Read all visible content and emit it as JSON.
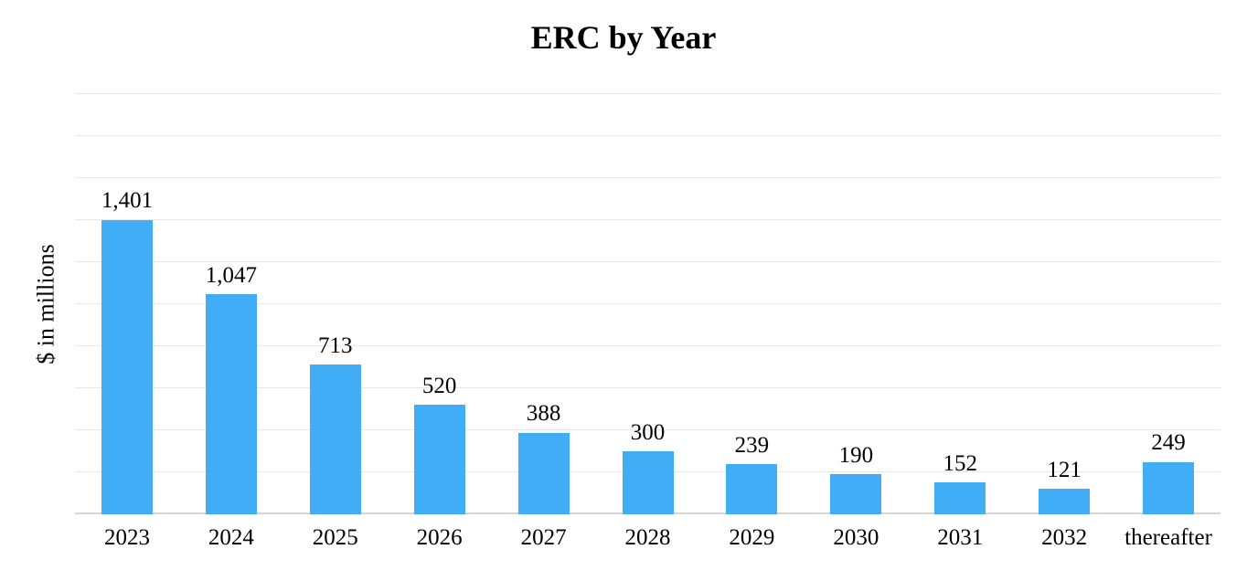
{
  "title": "ERC by Year",
  "colors": {
    "bar": "#41adf7",
    "gridline": "#e7e7e7",
    "axis_line": "#d6d6d6",
    "text": "#000000",
    "background": "#ffffff"
  },
  "chart_data": {
    "type": "bar",
    "title": "ERC by Year",
    "xlabel": "",
    "ylabel": "$ in millions",
    "categories": [
      "2023",
      "2024",
      "2025",
      "2026",
      "2027",
      "2028",
      "2029",
      "2030",
      "2031",
      "2032",
      "thereafter"
    ],
    "values": [
      1401,
      1047,
      713,
      520,
      388,
      300,
      239,
      190,
      152,
      121,
      249
    ],
    "value_labels": [
      "1,401",
      "1,047",
      "713",
      "520",
      "388",
      "300",
      "239",
      "190",
      "152",
      "121",
      "249"
    ],
    "ylim": [
      0,
      2000
    ],
    "grid_step": 200,
    "grid": true,
    "y_tick_labels_shown": false,
    "legend_position": "none",
    "bar_color": "#41adf7"
  }
}
